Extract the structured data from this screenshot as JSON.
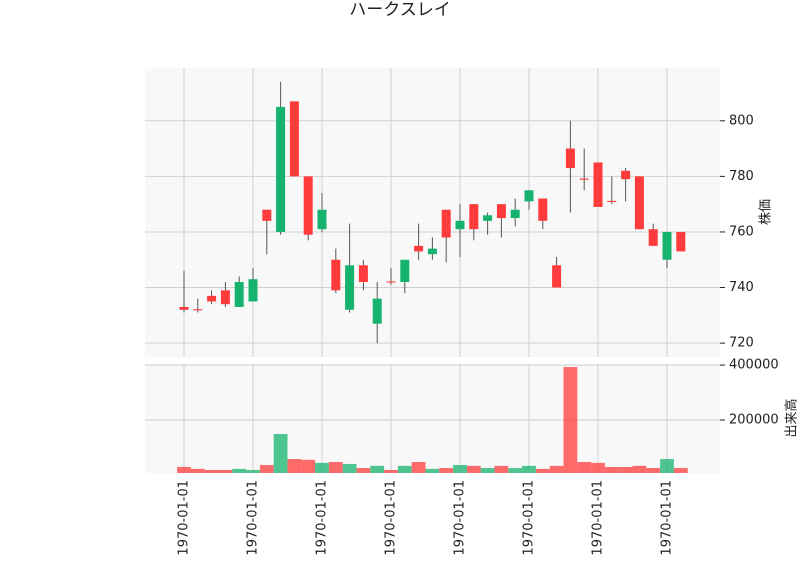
{
  "chart_data": {
    "type": "candlestick",
    "title": "ハークスレイ",
    "categories": [
      "1970-01-01",
      null,
      null,
      null,
      null,
      "1970-01-01",
      null,
      null,
      null,
      null,
      "1970-01-01",
      null,
      null,
      null,
      null,
      "1970-01-01",
      null,
      null,
      null,
      null,
      "1970-01-01",
      null,
      null,
      null,
      null,
      "1970-01-01",
      null,
      null,
      null,
      null,
      "1970-01-01",
      null,
      null,
      null,
      null,
      "1970-01-01",
      null
    ],
    "open": [
      733,
      732.2,
      737,
      739,
      733,
      735,
      768,
      760,
      807,
      780,
      761,
      750,
      732,
      748,
      727,
      742.2,
      742,
      755,
      752,
      768,
      761,
      770,
      764,
      770,
      765,
      771,
      772,
      748,
      790,
      779.2,
      785,
      771.2,
      782,
      780,
      761,
      750,
      760
    ],
    "high": [
      746,
      736,
      739,
      742,
      744,
      747,
      768,
      814,
      807,
      780,
      774,
      754,
      763,
      750,
      742,
      747,
      750,
      763,
      758,
      768,
      770,
      770,
      767,
      770,
      772,
      775,
      772,
      751,
      800,
      790,
      785,
      780,
      783,
      780,
      763,
      760,
      760
    ],
    "low": [
      731,
      731,
      734,
      733,
      733,
      735,
      752,
      759,
      780,
      757,
      760,
      738,
      731,
      739,
      720,
      741,
      738,
      750,
      750,
      749,
      751,
      757,
      759,
      758,
      762,
      768,
      761,
      740,
      767,
      775,
      769,
      770,
      771,
      761,
      755,
      747,
      753
    ],
    "close": [
      732,
      731.8,
      735,
      734,
      742,
      743,
      764,
      805,
      780,
      759,
      768,
      739,
      748,
      742,
      736,
      741.8,
      750,
      753,
      754,
      758,
      764,
      761,
      766,
      765,
      768,
      775,
      764,
      740,
      783,
      778.8,
      769,
      770.8,
      779,
      761,
      755,
      760,
      753
    ],
    "volume": [
      29000,
      22000,
      18000,
      18000,
      22000,
      18000,
      36000,
      149000,
      58000,
      55000,
      44000,
      47000,
      40000,
      25000,
      33000,
      18000,
      33000,
      47000,
      22000,
      25000,
      36000,
      33000,
      25000,
      33000,
      25000,
      33000,
      22000,
      33000,
      393000,
      47000,
      44000,
      29000,
      29000,
      33000,
      25000,
      58000,
      25000
    ],
    "up_color": "#16b36e",
    "down_color": "#ff3b3b",
    "ylabel": "株価",
    "ylim": [
      715,
      819
    ],
    "yticks": [
      720,
      740,
      760,
      780,
      800
    ],
    "volume_label": "出来高",
    "volume_ylim": [
      7000,
      404000
    ],
    "volume_yticks": [
      200000,
      400000
    ],
    "grid": true
  }
}
